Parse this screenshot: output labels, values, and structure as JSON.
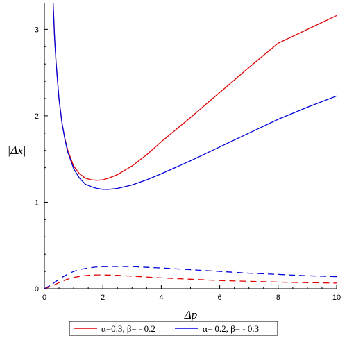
{
  "chart_data": {
    "type": "line",
    "xlabel": "Δp",
    "ylabel": "|Δx|",
    "xlim": [
      0,
      10
    ],
    "ylim": [
      0,
      3.3
    ],
    "x_ticks": [
      "0",
      "2",
      "4",
      "6",
      "8",
      "10"
    ],
    "y_ticks": [
      "0",
      "1",
      "2",
      "3"
    ],
    "grid": false,
    "legend_position": "bottom",
    "series": [
      {
        "name": "α=0.3, β= - 0.2",
        "color": "#e00000",
        "dash": "solid",
        "x": [
          0.3,
          0.35,
          0.4,
          0.5,
          0.6,
          0.7,
          0.8,
          1.0,
          1.2,
          1.4,
          1.6,
          1.8,
          2.0,
          2.2,
          2.5,
          3.0,
          3.5,
          4.0,
          5.0,
          6.0,
          7.0,
          8.0,
          9.0,
          10.0
        ],
        "values": [
          3.3,
          2.9,
          2.62,
          2.2,
          1.92,
          1.74,
          1.6,
          1.42,
          1.33,
          1.28,
          1.26,
          1.255,
          1.26,
          1.28,
          1.32,
          1.42,
          1.55,
          1.7,
          1.98,
          2.27,
          2.56,
          2.84,
          3.0,
          3.16
        ]
      },
      {
        "name": "α= 0.2, β= - 0.3",
        "color": "#0000dd",
        "dash": "solid",
        "x": [
          0.3,
          0.35,
          0.4,
          0.5,
          0.6,
          0.7,
          0.8,
          1.0,
          1.2,
          1.4,
          1.6,
          1.8,
          2.0,
          2.2,
          2.5,
          3.0,
          3.5,
          4.0,
          5.0,
          6.0,
          7.0,
          8.0,
          9.0,
          10.0
        ],
        "values": [
          3.3,
          2.9,
          2.62,
          2.2,
          1.92,
          1.73,
          1.58,
          1.39,
          1.28,
          1.21,
          1.18,
          1.16,
          1.15,
          1.15,
          1.16,
          1.2,
          1.26,
          1.33,
          1.48,
          1.64,
          1.8,
          1.96,
          2.1,
          2.23
        ]
      },
      {
        "name": "",
        "color": "#e00000",
        "dash": "dashed",
        "x": [
          0,
          0.25,
          0.5,
          0.75,
          1.0,
          1.25,
          1.5,
          1.75,
          2.0,
          2.5,
          3.0,
          4.0,
          5.0,
          6.0,
          7.0,
          8.0,
          9.0,
          10.0
        ],
        "values": [
          0,
          0.03,
          0.07,
          0.105,
          0.13,
          0.145,
          0.155,
          0.16,
          0.16,
          0.155,
          0.145,
          0.125,
          0.11,
          0.095,
          0.085,
          0.077,
          0.07,
          0.065
        ]
      },
      {
        "name": "",
        "color": "#0000dd",
        "dash": "dashed",
        "x": [
          0,
          0.25,
          0.5,
          0.75,
          1.0,
          1.25,
          1.5,
          1.75,
          2.0,
          2.5,
          3.0,
          4.0,
          5.0,
          6.0,
          7.0,
          8.0,
          9.0,
          10.0
        ],
        "values": [
          0,
          0.05,
          0.11,
          0.16,
          0.2,
          0.225,
          0.24,
          0.25,
          0.255,
          0.258,
          0.255,
          0.24,
          0.22,
          0.2,
          0.18,
          0.165,
          0.15,
          0.14
        ]
      }
    ],
    "legend": [
      {
        "label": "α=0.3, β= - 0.2",
        "color": "#e00000"
      },
      {
        "label": "α= 0.2, β= - 0.3",
        "color": "#0000dd"
      }
    ]
  }
}
